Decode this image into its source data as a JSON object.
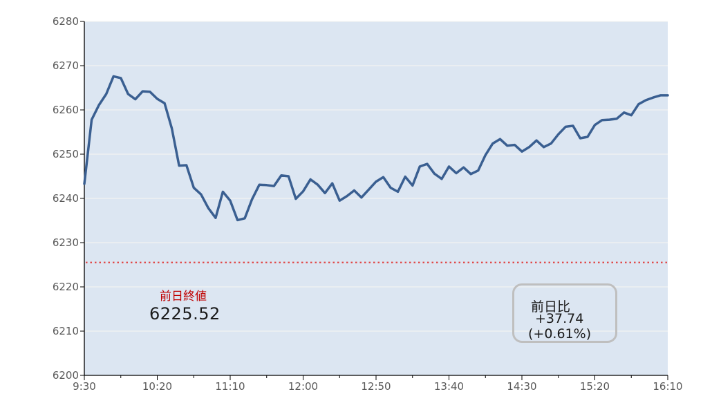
{
  "chart_data": {
    "type": "line",
    "title": "",
    "xlabel": "",
    "ylabel": "",
    "ylim": [
      6200,
      6280
    ],
    "yticks": [
      "6200",
      "6210",
      "6220",
      "6230",
      "6240",
      "6250",
      "6260",
      "6270",
      "6280"
    ],
    "xticks": [
      "9:30",
      "10:20",
      "11:10",
      "12:00",
      "12:50",
      "13:40",
      "14:30",
      "15:20",
      "16:10"
    ],
    "xlim_minutes": [
      570,
      970
    ],
    "grid": true,
    "background_color": "#dce6f2",
    "line_color": "#3a5f91",
    "reference_line_color": "#e04040",
    "series": [
      {
        "x": [
          "9:30",
          "9:35",
          "9:40",
          "9:45",
          "9:50",
          "9:55",
          "10:00",
          "10:05",
          "10:10",
          "10:15",
          "10:20",
          "10:25",
          "10:30",
          "10:35",
          "10:40",
          "10:45",
          "10:50",
          "10:55",
          "11:00",
          "11:05",
          "11:10",
          "11:15",
          "11:20",
          "11:25",
          "11:30",
          "11:35",
          "11:40",
          "11:45",
          "11:50",
          "11:55",
          "12:00",
          "12:05",
          "12:10",
          "12:15",
          "12:20",
          "12:25",
          "12:30",
          "12:35",
          "12:40",
          "12:45",
          "12:50",
          "12:55",
          "13:00",
          "13:05",
          "13:10",
          "13:15",
          "13:20",
          "13:25",
          "13:30",
          "13:35",
          "13:40",
          "13:45",
          "13:50",
          "13:55",
          "14:00",
          "14:05",
          "14:10",
          "14:15",
          "14:20",
          "14:25",
          "14:30",
          "14:35",
          "14:40",
          "14:45",
          "14:50",
          "14:55",
          "15:00",
          "15:05",
          "15:10",
          "15:15",
          "15:20",
          "15:25",
          "15:30",
          "15:35",
          "15:40",
          "15:45",
          "15:50",
          "15:55",
          "16:00",
          "16:05",
          "16:10"
        ],
        "values": [
          6243.3,
          6257.8,
          6261.1,
          6263.6,
          6267.6,
          6267.2,
          6263.6,
          6262.4,
          6264.2,
          6264.1,
          6262.5,
          6261.5,
          6255.8,
          6247.4,
          6247.5,
          6242.4,
          6240.9,
          6237.8,
          6235.6,
          6241.5,
          6239.5,
          6235.1,
          6235.5,
          6239.8,
          6243.1,
          6243.0,
          6242.8,
          6245.2,
          6245.0,
          6239.9,
          6241.6,
          6244.3,
          6243.1,
          6241.2,
          6243.4,
          6239.5,
          6240.5,
          6241.8,
          6240.2,
          6242.0,
          6243.8,
          6244.8,
          6242.4,
          6241.5,
          6244.9,
          6242.9,
          6247.2,
          6247.8,
          6245.6,
          6244.4,
          6247.2,
          6245.7,
          6247.0,
          6245.5,
          6246.3,
          6249.8,
          6252.4,
          6253.4,
          6251.9,
          6252.1,
          6250.6,
          6251.6,
          6253.1,
          6251.6,
          6252.4,
          6254.5,
          6256.2,
          6256.4,
          6253.6,
          6253.9,
          6256.6,
          6257.7,
          6257.8,
          6258.0,
          6259.4,
          6258.8,
          6261.3,
          6262.2,
          6262.8,
          6263.3,
          6263.3
        ]
      }
    ],
    "reference_line": {
      "value": 6225.52,
      "style": "dotted"
    },
    "annotations": {
      "prev_close_label": "前日終値",
      "prev_close_value": "6225.52",
      "change_title": "前日比",
      "change_value": "+37.74",
      "change_pct": "(+0.61%)"
    }
  }
}
